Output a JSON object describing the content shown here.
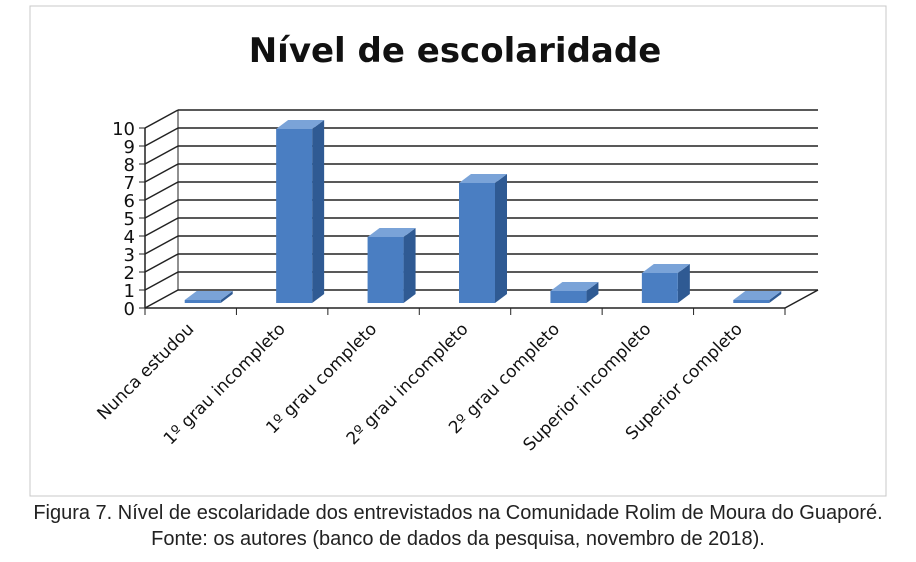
{
  "chart_data": {
    "type": "bar",
    "title": "Nível de escolaridade",
    "categories": [
      "Nunca estudou",
      "1º grau incompleto",
      "1º grau completo",
      "2º grau incompleto",
      "2º grau completo",
      "Superior incompleto",
      "Superior completo"
    ],
    "values": [
      0,
      10,
      4,
      7,
      1,
      2,
      0
    ],
    "ylim": [
      0,
      10
    ],
    "yticks": [
      "0",
      "1",
      "2",
      "3",
      "4",
      "5",
      "6",
      "7",
      "8",
      "9",
      "10"
    ],
    "grid": true,
    "legend": "none",
    "style": "3d-column",
    "bar_color": "#4a7ec2",
    "bar_side_color": "#2f5a93",
    "bar_top_color": "#7aa3d8"
  },
  "caption": {
    "line1": "Figura 7. Nível de escolaridade dos entrevistados na Comunidade Rolim de Moura do Guaporé.",
    "line2": "Fonte: os autores (banco de dados da pesquisa, novembro de 2018)."
  }
}
